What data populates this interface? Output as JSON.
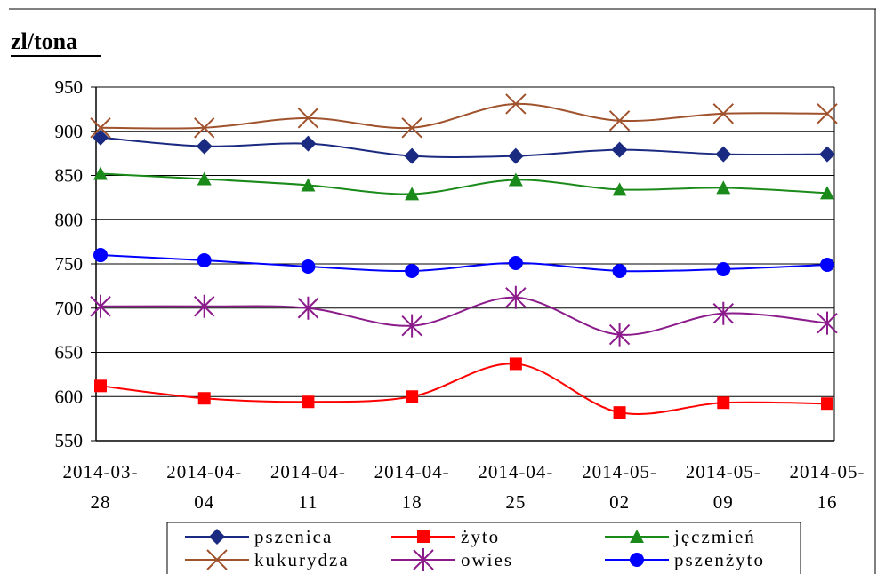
{
  "chart_data": {
    "type": "line",
    "title": "zl/tona",
    "categories": [
      "2014-03-28",
      "2014-04-04",
      "2014-04-11",
      "2014-04-18",
      "2014-04-25",
      "2014-05-02",
      "2014-05-09",
      "2014-05-16"
    ],
    "series": [
      {
        "name": "pszenica",
        "color": "#1a2a80",
        "marker": "diamond",
        "values": [
          893,
          883,
          886,
          872,
          872,
          879,
          874,
          874
        ]
      },
      {
        "name": "żyto",
        "color": "#ff0000",
        "marker": "square",
        "values": [
          612,
          598,
          594,
          600,
          637,
          582,
          593,
          592
        ]
      },
      {
        "name": "jęczmień",
        "color": "#1a8a1a",
        "marker": "triangle",
        "values": [
          852,
          846,
          839,
          829,
          845,
          834,
          836,
          830
        ]
      },
      {
        "name": "kukurydza",
        "color": "#a0522d",
        "marker": "x",
        "values": [
          904,
          904,
          915,
          904,
          931,
          912,
          920,
          920
        ]
      },
      {
        "name": "owies",
        "color": "#8b1a8b",
        "marker": "star",
        "values": [
          702,
          702,
          700,
          680,
          712,
          670,
          694,
          683
        ]
      },
      {
        "name": "pszenżyto",
        "color": "#0000ff",
        "marker": "circle",
        "values": [
          760,
          754,
          747,
          742,
          751,
          742,
          744,
          749
        ]
      }
    ],
    "ylim": [
      550,
      950
    ],
    "yticks": [
      550,
      600,
      650,
      700,
      750,
      800,
      850,
      900,
      950
    ],
    "grid": true
  }
}
